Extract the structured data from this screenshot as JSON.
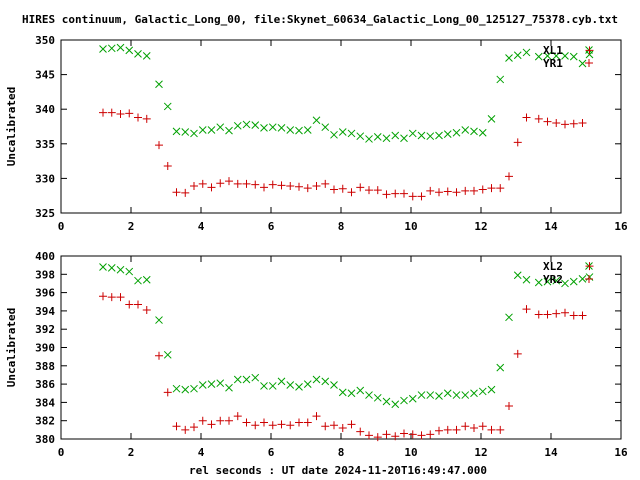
{
  "title": "HIRES continuum, Galactic_Long_00, file:Skynet_60634_Galactic_Long_00_125127_75378.cyb.txt",
  "xlabel": "rel seconds : UT date 2024-11-20T16:49:47.000",
  "colors": {
    "x_series": "#00a000",
    "r_series": "#cc0000"
  },
  "chart_data": [
    {
      "type": "scatter",
      "ylabel": "Uncalibrated",
      "xlim": [
        0,
        16
      ],
      "ylim": [
        325,
        350
      ],
      "xticks": [
        0,
        2,
        4,
        6,
        8,
        10,
        12,
        14,
        16
      ],
      "yticks": [
        325,
        330,
        335,
        340,
        345,
        350
      ],
      "legend_position": "top-right",
      "series": [
        {
          "name": "XL1",
          "marker": "x",
          "color": "#00a000",
          "x": [
            1.2,
            1.45,
            1.7,
            1.95,
            2.2,
            2.45,
            2.8,
            3.05,
            3.3,
            3.55,
            3.8,
            4.05,
            4.3,
            4.55,
            4.8,
            5.05,
            5.3,
            5.55,
            5.8,
            6.05,
            6.3,
            6.55,
            6.8,
            7.05,
            7.3,
            7.55,
            7.8,
            8.05,
            8.3,
            8.55,
            8.8,
            9.05,
            9.3,
            9.55,
            9.8,
            10.05,
            10.3,
            10.55,
            10.8,
            11.05,
            11.3,
            11.55,
            11.8,
            12.05,
            12.3,
            12.55,
            12.8,
            13.05,
            13.3,
            13.65,
            13.9,
            14.15,
            14.4,
            14.65,
            14.9,
            15.1
          ],
          "y": [
            348.7,
            348.8,
            348.9,
            348.5,
            348.0,
            347.7,
            343.6,
            340.4,
            336.8,
            336.7,
            336.5,
            337.0,
            337.0,
            337.4,
            336.9,
            337.6,
            337.8,
            337.7,
            337.3,
            337.4,
            337.3,
            337.0,
            336.9,
            337.0,
            338.4,
            337.4,
            336.3,
            336.7,
            336.5,
            336.1,
            335.7,
            336.0,
            335.8,
            336.2,
            335.8,
            336.5,
            336.2,
            336.1,
            336.2,
            336.4,
            336.6,
            337.0,
            336.8,
            336.6,
            338.6,
            344.3,
            347.4,
            347.8,
            348.2,
            347.6,
            347.7,
            347.7,
            347.7,
            347.6,
            346.6,
            347.9
          ]
        },
        {
          "name": "YR1",
          "marker": "+",
          "color": "#cc0000",
          "x": [
            1.2,
            1.45,
            1.7,
            1.95,
            2.2,
            2.45,
            2.8,
            3.05,
            3.3,
            3.55,
            3.8,
            4.05,
            4.3,
            4.55,
            4.8,
            5.05,
            5.3,
            5.55,
            5.8,
            6.05,
            6.3,
            6.55,
            6.8,
            7.05,
            7.3,
            7.55,
            7.8,
            8.05,
            8.3,
            8.55,
            8.8,
            9.05,
            9.3,
            9.55,
            9.8,
            10.05,
            10.3,
            10.55,
            10.8,
            11.05,
            11.3,
            11.55,
            11.8,
            12.05,
            12.3,
            12.55,
            12.8,
            13.05,
            13.3,
            13.65,
            13.9,
            14.15,
            14.4,
            14.65,
            14.9,
            15.1
          ],
          "y": [
            339.5,
            339.5,
            339.3,
            339.4,
            338.8,
            338.6,
            334.8,
            331.8,
            328.0,
            327.9,
            328.9,
            329.2,
            328.7,
            329.3,
            329.6,
            329.2,
            329.2,
            329.1,
            328.7,
            329.1,
            329.0,
            328.9,
            328.8,
            328.6,
            328.9,
            329.2,
            328.4,
            328.5,
            328.0,
            328.7,
            328.3,
            328.3,
            327.7,
            327.8,
            327.8,
            327.4,
            327.4,
            328.2,
            328.0,
            328.1,
            328.0,
            328.2,
            328.2,
            328.4,
            328.6,
            328.6,
            330.3,
            335.2,
            338.8,
            338.6,
            338.2,
            338.0,
            337.8,
            337.9,
            338.0,
            348.5
          ]
        }
      ]
    },
    {
      "type": "scatter",
      "ylabel": "Uncalibrated",
      "xlim": [
        0,
        16
      ],
      "ylim": [
        380,
        400
      ],
      "xticks": [
        0,
        2,
        4,
        6,
        8,
        10,
        12,
        14,
        16
      ],
      "yticks": [
        380,
        382,
        384,
        386,
        388,
        390,
        392,
        394,
        396,
        398,
        400
      ],
      "legend_position": "top-right",
      "series": [
        {
          "name": "XL2",
          "marker": "x",
          "color": "#00a000",
          "x": [
            1.2,
            1.45,
            1.7,
            1.95,
            2.2,
            2.45,
            2.8,
            3.05,
            3.3,
            3.55,
            3.8,
            4.05,
            4.3,
            4.55,
            4.8,
            5.05,
            5.3,
            5.55,
            5.8,
            6.05,
            6.3,
            6.55,
            6.8,
            7.05,
            7.3,
            7.55,
            7.8,
            8.05,
            8.3,
            8.55,
            8.8,
            9.05,
            9.3,
            9.55,
            9.8,
            10.05,
            10.3,
            10.55,
            10.8,
            11.05,
            11.3,
            11.55,
            11.8,
            12.05,
            12.3,
            12.55,
            12.8,
            13.05,
            13.3,
            13.65,
            13.9,
            14.15,
            14.4,
            14.65,
            14.9,
            15.1
          ],
          "y": [
            398.8,
            398.7,
            398.5,
            398.3,
            397.3,
            397.4,
            393.0,
            389.2,
            385.5,
            385.4,
            385.5,
            385.9,
            386.0,
            386.1,
            385.6,
            386.5,
            386.5,
            386.7,
            385.8,
            385.8,
            386.3,
            385.9,
            385.7,
            386.0,
            386.5,
            386.3,
            385.9,
            385.1,
            385.0,
            385.3,
            384.8,
            384.5,
            384.1,
            383.8,
            384.2,
            384.4,
            384.8,
            384.8,
            384.7,
            385.0,
            384.8,
            384.8,
            385.0,
            385.2,
            385.4,
            387.8,
            393.3,
            397.9,
            397.4,
            397.1,
            397.2,
            397.3,
            397.0,
            397.2,
            397.5,
            397.7
          ]
        },
        {
          "name": "YR2",
          "marker": "+",
          "color": "#cc0000",
          "x": [
            1.2,
            1.45,
            1.7,
            1.95,
            2.2,
            2.45,
            2.8,
            3.05,
            3.3,
            3.55,
            3.8,
            4.05,
            4.3,
            4.55,
            4.8,
            5.05,
            5.3,
            5.55,
            5.8,
            6.05,
            6.3,
            6.55,
            6.8,
            7.05,
            7.3,
            7.55,
            7.8,
            8.05,
            8.3,
            8.55,
            8.8,
            9.05,
            9.3,
            9.55,
            9.8,
            10.05,
            10.3,
            10.55,
            10.8,
            11.05,
            11.3,
            11.55,
            11.8,
            12.05,
            12.3,
            12.55,
            12.8,
            13.05,
            13.3,
            13.65,
            13.9,
            14.15,
            14.4,
            14.65,
            14.9,
            15.1
          ],
          "y": [
            395.6,
            395.5,
            395.5,
            394.7,
            394.7,
            394.1,
            389.1,
            385.1,
            381.4,
            381.0,
            381.3,
            382.0,
            381.6,
            382.0,
            382.0,
            382.5,
            381.8,
            381.5,
            381.8,
            381.5,
            381.6,
            381.5,
            381.8,
            381.8,
            382.5,
            381.4,
            381.5,
            381.2,
            381.6,
            380.8,
            380.4,
            380.2,
            380.5,
            380.3,
            380.6,
            380.5,
            380.4,
            380.5,
            380.9,
            381.0,
            381.0,
            381.4,
            381.2,
            381.4,
            381.0,
            381.0,
            383.6,
            389.3,
            394.2,
            393.6,
            393.6,
            393.7,
            393.8,
            393.5,
            393.5,
            398.9
          ]
        }
      ]
    }
  ]
}
